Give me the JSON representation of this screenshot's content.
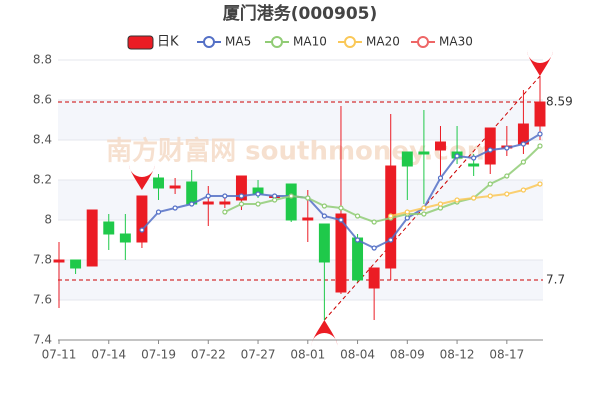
{
  "chart_data": {
    "type": "candlestick",
    "title": "厦门港务(000905)",
    "watermark": "南方财富网 southmoney.com",
    "categories": [
      "07-11",
      null,
      null,
      "07-14",
      null,
      null,
      "07-19",
      null,
      null,
      "07-22",
      null,
      null,
      "07-27",
      null,
      null,
      "08-01",
      null,
      null,
      "08-04",
      null,
      null,
      "08-09",
      null,
      null,
      "08-12",
      null,
      null,
      "08-17",
      null,
      null
    ],
    "series": [
      {
        "name": "日K",
        "color": "#eb1c24",
        "color_down": "#1fc94a",
        "open": [
          7.79,
          7.8,
          7.77,
          7.99,
          7.93,
          7.89,
          8.21,
          8.16,
          8.19,
          8.08,
          8.08,
          8.1,
          8.16,
          8.12,
          8.18,
          8.0,
          7.98,
          7.64,
          7.91,
          7.66,
          7.76,
          8.34,
          8.34,
          8.35,
          8.34,
          8.28,
          8.28,
          8.36,
          8.38,
          8.47
        ],
        "close": [
          7.8,
          7.76,
          8.05,
          7.93,
          7.89,
          8.12,
          8.16,
          8.17,
          8.08,
          8.09,
          8.09,
          8.22,
          8.13,
          8.12,
          8.0,
          8.01,
          7.79,
          8.03,
          7.7,
          7.76,
          8.27,
          8.27,
          8.33,
          8.39,
          8.31,
          8.27,
          8.46,
          8.37,
          8.48,
          8.59
        ],
        "high": [
          7.89,
          7.8,
          8.05,
          8.03,
          8.03,
          8.12,
          8.23,
          8.21,
          8.25,
          8.17,
          8.12,
          8.22,
          8.2,
          8.13,
          8.18,
          8.15,
          7.98,
          8.57,
          7.93,
          7.76,
          8.53,
          8.34,
          8.55,
          8.47,
          8.47,
          8.33,
          8.46,
          8.47,
          8.65,
          8.72
        ],
        "low": [
          7.56,
          7.73,
          7.77,
          7.85,
          7.8,
          7.86,
          8.1,
          8.13,
          8.07,
          7.97,
          8.06,
          8.05,
          8.11,
          8.1,
          7.99,
          7.89,
          7.5,
          7.63,
          7.69,
          7.5,
          7.7,
          8.1,
          8.08,
          8.22,
          8.28,
          8.22,
          8.23,
          8.32,
          8.33,
          8.4
        ]
      },
      {
        "name": "MA5",
        "color": "#5470c6",
        "values": [
          null,
          null,
          null,
          null,
          null,
          7.95,
          8.04,
          8.06,
          8.08,
          8.12,
          8.12,
          8.12,
          8.13,
          8.12,
          8.12,
          8.11,
          8.02,
          8.0,
          7.9,
          7.86,
          7.9,
          8.01,
          8.06,
          8.21,
          8.32,
          8.31,
          8.35,
          8.36,
          8.38,
          8.43
        ]
      },
      {
        "name": "MA10",
        "color": "#91cc75",
        "values": [
          null,
          null,
          null,
          null,
          null,
          null,
          null,
          null,
          null,
          null,
          8.04,
          8.08,
          8.08,
          8.1,
          8.12,
          8.11,
          8.07,
          8.06,
          8.02,
          7.99,
          8.01,
          8.03,
          8.03,
          8.06,
          8.09,
          8.11,
          8.18,
          8.22,
          8.29,
          8.37
        ]
      },
      {
        "name": "MA20",
        "color": "#fac858",
        "values": [
          null,
          null,
          null,
          null,
          null,
          null,
          null,
          null,
          null,
          null,
          null,
          null,
          null,
          null,
          null,
          null,
          null,
          null,
          null,
          null,
          8.02,
          8.04,
          8.06,
          8.08,
          8.1,
          8.11,
          8.12,
          8.13,
          8.15,
          8.18
        ]
      },
      {
        "name": "MA30",
        "color": "#ee6666",
        "values": [
          null,
          null,
          null,
          null,
          null,
          null,
          null,
          null,
          null,
          null,
          null,
          null,
          null,
          null,
          null,
          null,
          null,
          null,
          null,
          null,
          null,
          null,
          null,
          null,
          null,
          null,
          null,
          null,
          null,
          null
        ]
      }
    ],
    "reference_lines": [
      8.59,
      7.7
    ],
    "markers": [
      {
        "label": "8",
        "category_index": 5,
        "value": 8.15,
        "direction": "down"
      },
      {
        "label": "8",
        "category_index": 16,
        "value": 7.5,
        "direction": "up"
      },
      {
        "label": "9",
        "category_index": 29,
        "value": 8.72,
        "direction": "down"
      }
    ],
    "ylim": [
      7.4,
      8.8
    ],
    "yticks": [
      7.4,
      7.6,
      7.8,
      8,
      8.2,
      8.4,
      8.6,
      8.8
    ],
    "grid": true,
    "legend": "top"
  }
}
